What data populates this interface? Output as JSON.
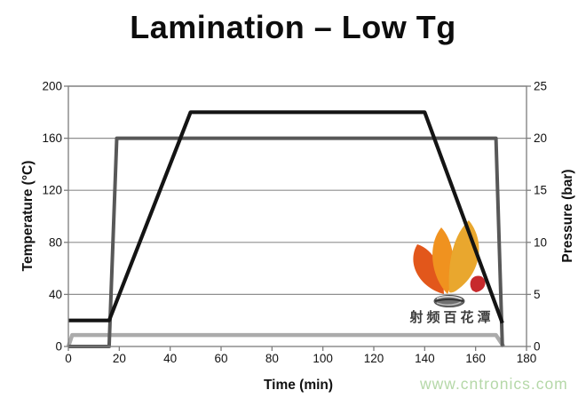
{
  "page": {
    "background": "#ffffff"
  },
  "chart_data": {
    "type": "line",
    "title": "Lamination – Low Tg",
    "xlabel": "Time (min)",
    "ylabel_left": "Temperature (°C)",
    "ylabel_right": "Pressure (bar)",
    "xlim": [
      0,
      180
    ],
    "xticks": [
      0,
      20,
      40,
      60,
      80,
      100,
      120,
      140,
      160,
      180
    ],
    "ylim_left": [
      0,
      200
    ],
    "yticks_left": [
      0,
      40,
      80,
      120,
      160,
      200
    ],
    "ylim_right": [
      0,
      25
    ],
    "yticks_right": [
      0,
      5,
      10,
      15,
      20,
      25
    ],
    "grid": "horizontal-only",
    "legend": "none",
    "colors": {
      "grid": "#8f8f8f",
      "axis": "#7d7d7d",
      "tick_labels": "#111111"
    },
    "series": [
      {
        "name": "Temperature profile (black, left axis)",
        "axis": "left",
        "unit": "°C",
        "color": "#141414",
        "width": 4.2,
        "points": [
          [
            0,
            20
          ],
          [
            16,
            20
          ],
          [
            48,
            180
          ],
          [
            140,
            180
          ],
          [
            170.5,
            18
          ]
        ]
      },
      {
        "name": "Pressure profile (dark gray, right axis)",
        "axis": "right",
        "unit": "bar",
        "color": "#585858",
        "width": 4,
        "points": [
          [
            0,
            0
          ],
          [
            16,
            0
          ],
          [
            19,
            20
          ],
          [
            168,
            20
          ],
          [
            170.5,
            0
          ]
        ]
      },
      {
        "name": "Secondary low-pressure line (light gray, right axis)",
        "axis": "right",
        "unit": "bar",
        "color": "#ababab",
        "width": 4.5,
        "points": [
          [
            0,
            0
          ],
          [
            1.5,
            1.1
          ],
          [
            168,
            1.1
          ],
          [
            171,
            0
          ]
        ]
      }
    ]
  },
  "watermark": {
    "brand_text": "射频百花潭",
    "url_text": "www.cntronics.com",
    "url_color": "#b5d8a8",
    "flame_colors": {
      "left_petal": "#e2571b",
      "middle_petal": "#f0921f",
      "right_petal": "#e9a72e",
      "drop": "#c7292c",
      "pod_fill": "#6f6f6f"
    }
  }
}
